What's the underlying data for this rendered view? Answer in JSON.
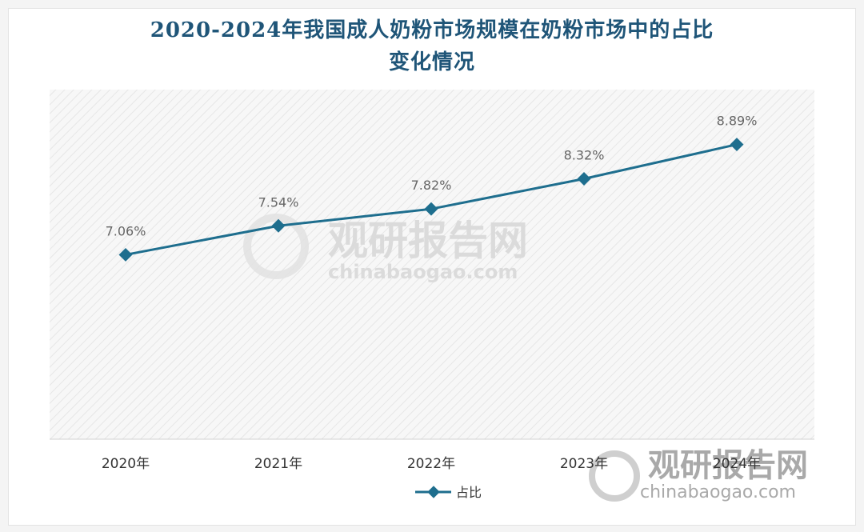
{
  "chart_data": {
    "type": "line",
    "title_line1": "2020-2024年我国成人奶粉市场规模在奶粉市场中的占比",
    "title_line2": "变化情况",
    "categories": [
      "2020年",
      "2021年",
      "2022年",
      "2023年",
      "2024年"
    ],
    "series": [
      {
        "name": "占比",
        "values": [
          7.06,
          7.54,
          7.82,
          8.32,
          8.89
        ],
        "labels": [
          "7.06%",
          "7.54%",
          "7.82%",
          "8.32%",
          "8.89%"
        ]
      }
    ],
    "ylim": [
      4.0,
      9.8
    ],
    "grid": false,
    "legend": "bottom-center",
    "colors": {
      "line": "#1e6e8e",
      "title": "#1f5578"
    }
  },
  "watermark": {
    "brand": "观研报告网",
    "url": "chinabaogao.com"
  }
}
